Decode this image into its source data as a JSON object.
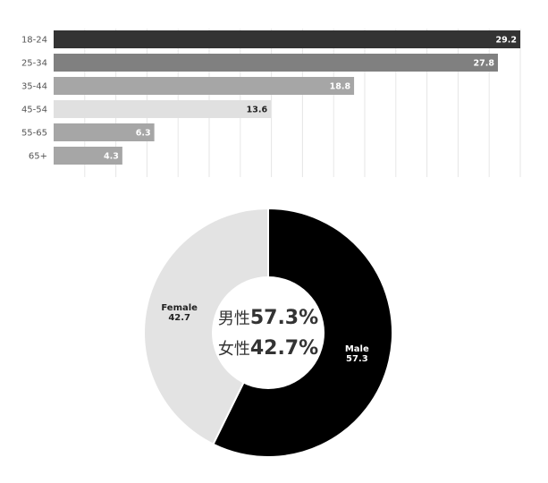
{
  "colors": {
    "grid": "#e6e6e6",
    "axis_label": "#555555",
    "bar_label": "#ffffff",
    "bar_label_dark": "#222222",
    "male": "#000000",
    "female": "#e3e3e3",
    "slice_label_light": "#ffffff",
    "slice_label_dark": "#222222"
  },
  "chart_data": [
    {
      "type": "bar",
      "orientation": "horizontal",
      "categories": [
        "18-24",
        "25-34",
        "35-44",
        "45-54",
        "55-65",
        "65+"
      ],
      "values": [
        29.2,
        27.8,
        18.8,
        13.6,
        6.3,
        4.3
      ],
      "labels": [
        "29.2",
        "27.8",
        "18.8",
        "13.6",
        "6.3",
        "4.3"
      ],
      "bar_colors": [
        "#333333",
        "#808080",
        "#a6a6a6",
        "#e0e0e0",
        "#a6a6a6",
        "#a6a6a6"
      ],
      "xlim": [
        0,
        29.2
      ],
      "grid": true,
      "title": "",
      "xlabel": "",
      "ylabel": ""
    },
    {
      "type": "pie",
      "donut": true,
      "categories": [
        "Male",
        "Female"
      ],
      "values": [
        57.3,
        42.7
      ],
      "labels": [
        "57.3",
        "42.7"
      ],
      "colors": [
        "#000000",
        "#e3e3e3"
      ],
      "center": {
        "male_name": "男性",
        "male_value": "57.3%",
        "female_name": "女性",
        "female_value": "42.7%"
      }
    }
  ]
}
